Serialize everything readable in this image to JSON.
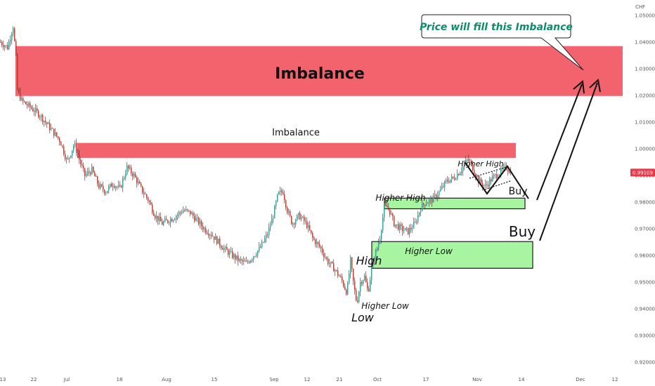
{
  "chart_data": {
    "type": "candlestick",
    "currency": "CHF",
    "current_price": "0.99109",
    "y_ticks": [
      "1.05000",
      "1.04000",
      "1.03000",
      "1.02000",
      "1.01000",
      "1.00000",
      "0.99000",
      "0.98000",
      "0.97000",
      "0.96000",
      "0.95000",
      "0.94000",
      "0.93000",
      "0.92000"
    ],
    "x_ticks": [
      "13",
      "22",
      "Jul",
      "18",
      "Aug",
      "15",
      "Sep",
      "12",
      "21",
      "Oct",
      "17",
      "Nov",
      "14",
      "Dec",
      "12"
    ],
    "ylim": [
      0.918,
      1.052
    ],
    "price_path": [
      [
        0,
        1.04
      ],
      [
        10,
        1.038
      ],
      [
        18,
        1.046
      ],
      [
        22,
        1.034
      ],
      [
        24,
        1.022
      ],
      [
        30,
        1.018
      ],
      [
        40,
        1.016
      ],
      [
        55,
        1.013
      ],
      [
        70,
        1.008
      ],
      [
        85,
        1.003
      ],
      [
        95,
        0.995
      ],
      [
        105,
        1.002
      ],
      [
        112,
        0.996
      ],
      [
        120,
        0.99
      ],
      [
        130,
        0.992
      ],
      [
        140,
        0.986
      ],
      [
        150,
        0.984
      ],
      [
        160,
        0.987
      ],
      [
        170,
        0.985
      ],
      [
        180,
        0.993
      ],
      [
        190,
        0.99
      ],
      [
        200,
        0.985
      ],
      [
        210,
        0.981
      ],
      [
        220,
        0.975
      ],
      [
        230,
        0.972
      ],
      [
        245,
        0.974
      ],
      [
        260,
        0.977
      ],
      [
        270,
        0.976
      ],
      [
        280,
        0.973
      ],
      [
        290,
        0.97
      ],
      [
        300,
        0.968
      ],
      [
        310,
        0.965
      ],
      [
        320,
        0.962
      ],
      [
        330,
        0.96
      ],
      [
        340,
        0.958
      ],
      [
        350,
        0.957
      ],
      [
        360,
        0.96
      ],
      [
        370,
        0.963
      ],
      [
        380,
        0.968
      ],
      [
        388,
        0.975
      ],
      [
        395,
        0.983
      ],
      [
        402,
        0.984
      ],
      [
        408,
        0.977
      ],
      [
        415,
        0.972
      ],
      [
        425,
        0.975
      ],
      [
        435,
        0.972
      ],
      [
        445,
        0.966
      ],
      [
        455,
        0.963
      ],
      [
        465,
        0.958
      ],
      [
        475,
        0.955
      ],
      [
        485,
        0.951
      ],
      [
        493,
        0.946
      ],
      [
        498,
        0.958
      ],
      [
        503,
        0.948
      ],
      [
        507,
        0.942
      ],
      [
        512,
        0.95
      ],
      [
        518,
        0.952
      ],
      [
        523,
        0.946
      ],
      [
        528,
        0.955
      ],
      [
        535,
        0.962
      ],
      [
        540,
        0.967
      ],
      [
        546,
        0.978
      ],
      [
        552,
        0.978
      ],
      [
        560,
        0.972
      ],
      [
        570,
        0.97
      ],
      [
        580,
        0.969
      ],
      [
        590,
        0.972
      ],
      [
        598,
        0.978
      ],
      [
        605,
        0.98
      ],
      [
        615,
        0.981
      ],
      [
        625,
        0.984
      ],
      [
        635,
        0.988
      ],
      [
        645,
        0.989
      ],
      [
        655,
        0.992
      ],
      [
        665,
        0.996
      ],
      [
        672,
        0.993
      ],
      [
        680,
        0.988
      ],
      [
        690,
        0.986
      ],
      [
        700,
        0.989
      ],
      [
        710,
        0.991
      ],
      [
        720,
        0.993
      ],
      [
        727,
        0.991
      ]
    ],
    "zones": [
      {
        "label": "Imbalance",
        "color": "#f2636e",
        "from": 1.0198,
        "to": 1.0385,
        "x_start": 22,
        "x_end": 886
      },
      {
        "label": "Imbalance",
        "color": "#f2636e",
        "from": 0.9966,
        "to": 1.0022,
        "x_start": 110,
        "x_end": 734
      },
      {
        "label": "",
        "color": "#a8f5a1",
        "from": 0.9775,
        "to": 0.9815,
        "x_start": 547,
        "x_end": 747
      },
      {
        "label": "Higher Low",
        "color": "#a8f5a1",
        "from": 0.9552,
        "to": 0.9652,
        "x_start": 529,
        "x_end": 758
      }
    ],
    "annotations": [
      "Higher High",
      "Higher High",
      "Higher Low",
      "Higher Low",
      "High",
      "Low",
      "Buy",
      "Buy"
    ],
    "callout": "Price will fill this Imbalance"
  },
  "colors": {
    "up": "#26a69a",
    "down": "#c0392b",
    "candle": "#3a1f24",
    "imbalance": "#f2636e",
    "zone_green": "#a8f5a1",
    "price_tag": "#e8394a",
    "callout_text": "#0e8c6a"
  }
}
